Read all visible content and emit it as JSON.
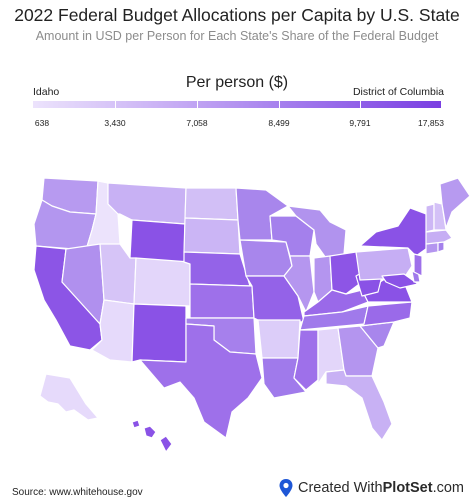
{
  "title": "2022 Federal Budget Allocations per Capita by U.S. State",
  "subtitle": "Amount in USD per Person for Each State's Share of the Federal Budget",
  "legend": {
    "title": "Per person ($)",
    "min_label": "Idaho",
    "max_label": "District of Columbia",
    "ticks": [
      "638",
      "3,430",
      "7,058",
      "8,499",
      "9,791",
      "17,853"
    ]
  },
  "colors": {
    "lightest": "#ece3fc",
    "light": "#c6acf4",
    "mid": "#a47ded",
    "dark": "#7a3fe2",
    "border": "#ffffff"
  },
  "source": "Source: www.whitehouse.gov",
  "brand": {
    "prefix": "Created With",
    "name": "PlotSet",
    "suffix": ".com",
    "icon": "location-pin-icon"
  }
}
